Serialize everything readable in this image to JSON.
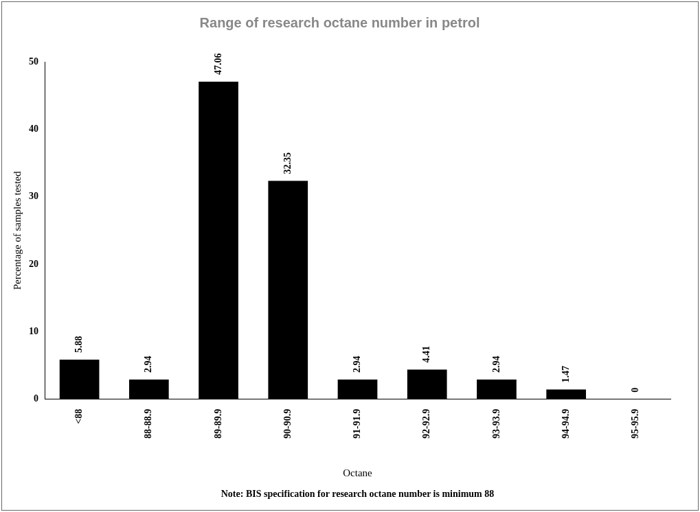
{
  "chart_data": {
    "type": "bar",
    "title": "Range of research octane number in petrol",
    "xlabel": "Octane",
    "ylabel": "Percentage of samples tested",
    "categories": [
      "<88",
      "88-88.9",
      "89-89.9",
      "90-90.9",
      "91-91.9",
      "92-92.9",
      "93-93.9",
      "94-94.9",
      "95-95.9"
    ],
    "values": [
      5.88,
      2.94,
      47.06,
      32.35,
      2.94,
      4.41,
      2.94,
      1.47,
      0
    ],
    "color": "#000000",
    "ylim": [
      0,
      50
    ],
    "yticks": [
      0,
      10,
      20,
      30,
      40,
      50
    ],
    "grid": false,
    "legend": false,
    "data_labels": true,
    "annotations": [
      "Note: BIS specification for research octane number is minimum 88"
    ]
  }
}
